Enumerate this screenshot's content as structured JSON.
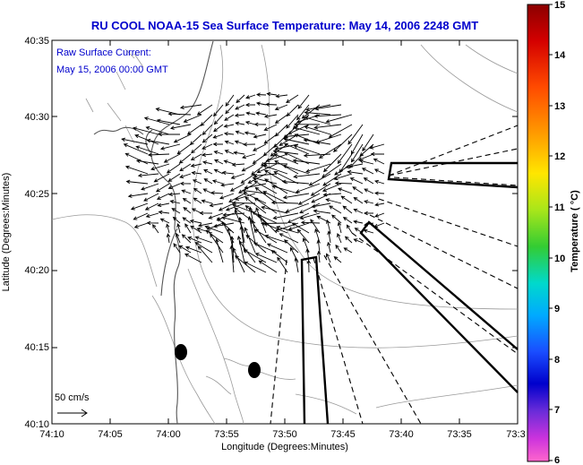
{
  "map": {
    "title": "RU COOL  NOAA-15  Sea Surface Temperature:  May 14, 2006 2248 GMT",
    "annotation": {
      "line1": "Raw Surface Current:",
      "line2": "May 15, 2006 00:00 GMT"
    },
    "x_axis": {
      "label": "Longitude (Degrees:Minutes)",
      "ticks": [
        "74:10",
        "74:05",
        "74:00",
        "73:55",
        "73:50",
        "73:45",
        "73:40",
        "73:35",
        "73:3"
      ]
    },
    "y_axis": {
      "label": "Latitude (Degrees:Minutes)",
      "ticks": [
        "40:35",
        "40:30",
        "40:25",
        "40:20",
        "40:15",
        "40:10"
      ]
    },
    "scale_label": "50 cm/s",
    "colorbar": {
      "label": "Temperature ( °C)",
      "ticks": [
        "15",
        "14",
        "13",
        "12",
        "11",
        "10",
        "9",
        "8",
        "7",
        "6"
      ]
    },
    "colors": {
      "title": "#0000cc",
      "coast": "#555555",
      "bathymetry": "#9a9a9a",
      "vectors": "#000000"
    }
  }
}
